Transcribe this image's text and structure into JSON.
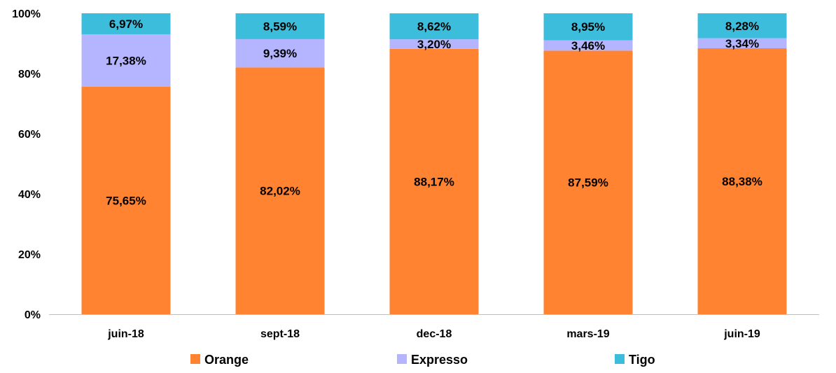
{
  "chart_data": {
    "type": "bar",
    "stacked": true,
    "normalized": true,
    "title": "",
    "xlabel": "",
    "ylabel": "",
    "ylim": [
      0,
      100
    ],
    "yticks": [
      "0%",
      "20%",
      "40%",
      "60%",
      "80%",
      "100%"
    ],
    "grid": false,
    "legend": "bottom",
    "categories": [
      "juin-18",
      "sept-18",
      "dec-18",
      "mars-19",
      "juin-19"
    ],
    "series": [
      {
        "name": "Orange",
        "color": "#FF8330",
        "values": [
          75.65,
          82.02,
          88.17,
          87.59,
          88.38
        ],
        "labels": [
          "75,65%",
          "82,02%",
          "88,17%",
          "87,59%",
          "88,38%"
        ]
      },
      {
        "name": "Expresso",
        "color": "#B4B4FF",
        "values": [
          17.38,
          9.39,
          3.2,
          3.46,
          3.34
        ],
        "labels": [
          "17,38%",
          "9,39%",
          "3,20%",
          "3,46%",
          "3,34%"
        ]
      },
      {
        "name": "Tigo",
        "color": "#3DBDDC",
        "values": [
          6.97,
          8.59,
          8.62,
          8.95,
          8.28
        ],
        "labels": [
          "6,97%",
          "8,59%",
          "8,62%",
          "8,95%",
          "8,28%"
        ]
      }
    ]
  }
}
